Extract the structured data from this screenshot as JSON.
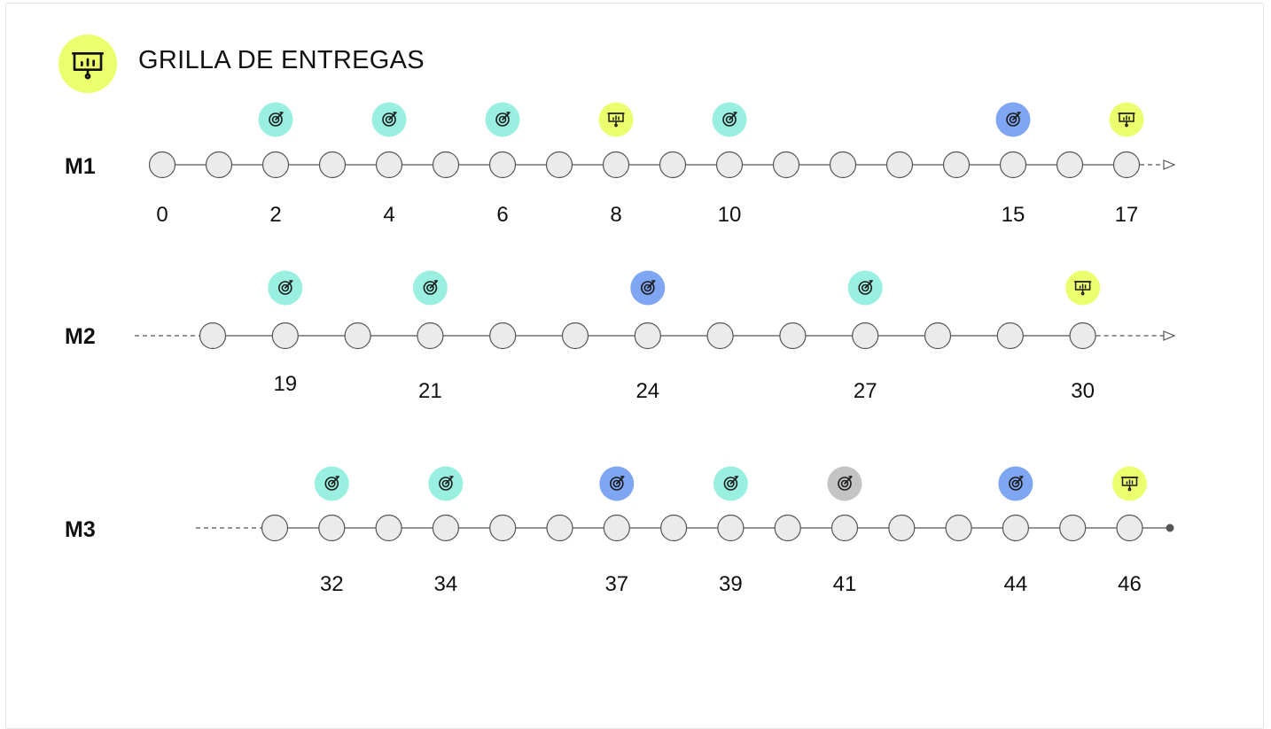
{
  "page": {
    "title": "GRILLA DE ENTREGAS",
    "title_icon": "presentation-board-icon"
  },
  "colors": {
    "delivery": "#ebff6e",
    "target_teal": "#9af0e0",
    "target_blue": "#7fa6f2",
    "target_gray": "#c4c4c4",
    "node_fill": "#ebebeb",
    "node_stroke": "#555555",
    "line": "#555555"
  },
  "markers_legend": {
    "target": "target-icon",
    "delivery": "presentation-board-icon"
  },
  "rows": [
    {
      "label": "M1",
      "start": "node",
      "end": "arrow",
      "nodes": [
        0,
        1,
        2,
        3,
        4,
        5,
        6,
        7,
        8,
        9,
        10,
        11,
        12,
        13,
        14,
        15,
        16,
        17
      ],
      "numbers": [
        0,
        2,
        4,
        6,
        8,
        10,
        15,
        17
      ],
      "markers": [
        {
          "session": 2,
          "type": "target",
          "color": "teal"
        },
        {
          "session": 4,
          "type": "target",
          "color": "teal"
        },
        {
          "session": 6,
          "type": "target",
          "color": "teal"
        },
        {
          "session": 8,
          "type": "delivery",
          "color": "delivery"
        },
        {
          "session": 10,
          "type": "target",
          "color": "teal"
        },
        {
          "session": 15,
          "type": "target",
          "color": "blue"
        },
        {
          "session": 17,
          "type": "delivery",
          "color": "delivery"
        }
      ]
    },
    {
      "label": "M2",
      "start": "dashed",
      "end": "arrow",
      "nodes": [
        18,
        19,
        20,
        21,
        22,
        23,
        24,
        25,
        26,
        27,
        28,
        29,
        30
      ],
      "numbers": [
        19,
        21,
        24,
        27,
        30
      ],
      "markers": [
        {
          "session": 19,
          "type": "target",
          "color": "teal"
        },
        {
          "session": 21,
          "type": "target",
          "color": "teal"
        },
        {
          "session": 24,
          "type": "target",
          "color": "blue"
        },
        {
          "session": 27,
          "type": "target",
          "color": "teal"
        },
        {
          "session": 30,
          "type": "delivery",
          "color": "delivery"
        }
      ]
    },
    {
      "label": "M3",
      "start": "dashed",
      "end": "dot",
      "nodes": [
        31,
        32,
        33,
        34,
        35,
        36,
        37,
        38,
        39,
        40,
        41,
        42,
        43,
        44,
        45,
        46
      ],
      "numbers": [
        32,
        34,
        37,
        39,
        41,
        44,
        46
      ],
      "markers": [
        {
          "session": 32,
          "type": "target",
          "color": "teal"
        },
        {
          "session": 34,
          "type": "target",
          "color": "teal"
        },
        {
          "session": 37,
          "type": "target",
          "color": "blue"
        },
        {
          "session": 39,
          "type": "target",
          "color": "teal"
        },
        {
          "session": 41,
          "type": "target",
          "color": "gray"
        },
        {
          "session": 44,
          "type": "target",
          "color": "blue"
        },
        {
          "session": 46,
          "type": "delivery",
          "color": "delivery"
        }
      ]
    }
  ]
}
